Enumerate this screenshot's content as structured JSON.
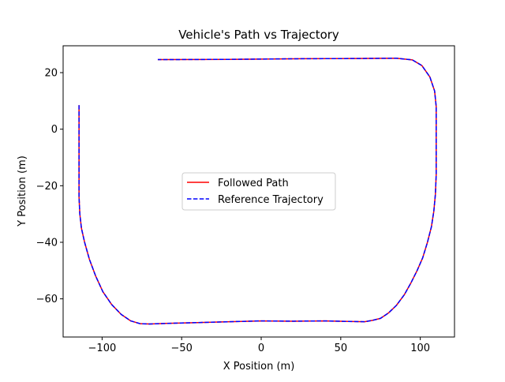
{
  "chart_data": {
    "type": "line",
    "title": "Vehicle's Path vs Trajectory",
    "xlabel": "X Position (m)",
    "ylabel": "Y Position (m)",
    "xlim": [
      -124.5,
      121.5
    ],
    "ylim": [
      -73.5,
      29.5
    ],
    "xticks": [
      -100,
      -50,
      0,
      50,
      100
    ],
    "xtick_labels": [
      "−100",
      "−50",
      "0",
      "50",
      "100"
    ],
    "yticks": [
      -60,
      -40,
      -20,
      0,
      20
    ],
    "ytick_labels": [
      "−60",
      "−40",
      "−20",
      "0",
      "20"
    ],
    "grid": false,
    "legend_position": "center",
    "series": [
      {
        "name": "Followed Path",
        "color": "#ff0000",
        "style": "solid",
        "x": [
          -114.5,
          -114.5,
          -114.5,
          -114.5,
          -114.0,
          -113.0,
          -111.0,
          -108.0,
          -104.0,
          -99.5,
          -94.0,
          -88.0,
          -82.0,
          -76.0,
          -70.0,
          -60.0,
          -40.0,
          -20.0,
          0.0,
          20.0,
          40.0,
          55.0,
          65.0,
          70.0,
          75.0,
          80.0,
          85.0,
          90.0,
          94.0,
          98.0,
          101.5,
          104.5,
          107.0,
          108.5,
          109.5,
          110.0,
          110.0,
          110.0,
          110.0,
          109.0,
          106.0,
          101.0,
          95.0,
          85.0,
          60.0,
          20.0,
          -20.0,
          -65.0
        ],
        "y": [
          8.5,
          0.0,
          -15.0,
          -24.0,
          -30.0,
          -35.0,
          -40.0,
          -46.0,
          -52.0,
          -57.5,
          -62.0,
          -65.5,
          -67.8,
          -68.8,
          -68.9,
          -68.7,
          -68.4,
          -68.1,
          -67.8,
          -67.9,
          -67.8,
          -68.0,
          -68.1,
          -67.6,
          -66.9,
          -65.0,
          -62.3,
          -58.5,
          -54.5,
          -50.0,
          -45.5,
          -40.0,
          -34.5,
          -29.0,
          -23.0,
          -16.0,
          0.0,
          5.0,
          8.0,
          13.5,
          18.5,
          22.5,
          24.5,
          25.1,
          25.0,
          24.9,
          24.7,
          24.6
        ]
      },
      {
        "name": "Reference Trajectory",
        "color": "#0000ff",
        "style": "dashed",
        "x": [
          -114.5,
          -114.5,
          -114.5,
          -114.5,
          -114.0,
          -113.0,
          -111.0,
          -108.0,
          -104.0,
          -99.5,
          -94.0,
          -88.0,
          -82.0,
          -76.0,
          -70.0,
          -60.0,
          -40.0,
          -20.0,
          0.0,
          20.0,
          40.0,
          55.0,
          65.0,
          70.0,
          75.0,
          80.0,
          85.0,
          90.0,
          94.0,
          98.0,
          101.5,
          104.5,
          107.0,
          108.5,
          109.5,
          110.0,
          110.0,
          110.0,
          110.0,
          109.0,
          106.0,
          101.0,
          95.0,
          85.0,
          60.0,
          20.0,
          -20.0,
          -65.0
        ],
        "y": [
          8.5,
          0.0,
          -15.0,
          -24.0,
          -30.0,
          -35.0,
          -40.0,
          -46.0,
          -52.0,
          -57.5,
          -62.0,
          -65.5,
          -67.8,
          -68.8,
          -68.9,
          -68.7,
          -68.4,
          -68.1,
          -67.8,
          -67.9,
          -67.8,
          -68.0,
          -68.1,
          -67.6,
          -66.9,
          -65.0,
          -62.3,
          -58.5,
          -54.5,
          -50.0,
          -45.5,
          -40.0,
          -34.5,
          -29.0,
          -23.0,
          -16.0,
          0.0,
          5.0,
          8.0,
          13.5,
          18.5,
          22.5,
          24.5,
          25.1,
          25.0,
          24.9,
          24.7,
          24.6
        ]
      }
    ]
  }
}
